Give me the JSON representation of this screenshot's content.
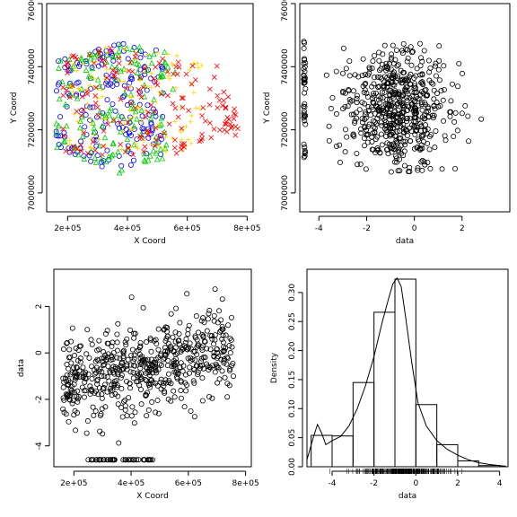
{
  "chart_data": [
    {
      "type": "scatter",
      "panel": "top-left",
      "xlabel": "X Coord",
      "ylabel": "Y Coord",
      "xlim": [
        130000,
        820000
      ],
      "ylim": [
        6940000,
        7600000
      ],
      "xticks": [
        200000,
        400000,
        600000,
        800000
      ],
      "xticklabels": [
        "2e+05",
        "4e+05",
        "6e+05",
        "8e+05"
      ],
      "yticks": [
        7000000,
        7200000,
        7400000,
        7600000
      ],
      "yticklabels": [
        "7000000",
        "7200000",
        "7400000",
        "7600000"
      ],
      "series": [
        {
          "marker": "circle",
          "color": "#0000ff",
          "approx_region": {
            "x": [
              160000,
              520000
            ],
            "y": [
              7080000,
              7480000
            ]
          },
          "count": 180
        },
        {
          "marker": "triangle",
          "color": "#00cd00",
          "approx_region": {
            "x": [
              160000,
              560000
            ],
            "y": [
              7060000,
              7480000
            ]
          },
          "count": 150
        },
        {
          "marker": "plus",
          "color": "#ffd700",
          "approx_region": {
            "x": [
              200000,
              650000
            ],
            "y": [
              7130000,
              7480000
            ]
          },
          "count": 120
        },
        {
          "marker": "cross",
          "color": "#ff0000",
          "approx_region": {
            "x": [
              180000,
              780000
            ],
            "y": [
              7120000,
              7460000
            ]
          },
          "count": 170
        }
      ]
    },
    {
      "type": "scatter",
      "panel": "top-right",
      "xlabel": "data",
      "ylabel": "Y Coord",
      "xlim": [
        -4.8,
        4.0
      ],
      "ylim": [
        6940000,
        7600000
      ],
      "xticks": [
        -4,
        -2,
        0,
        2
      ],
      "xticklabels": [
        "-4",
        "-2",
        "0",
        "2"
      ],
      "yticks": [
        7000000,
        7200000,
        7400000,
        7600000
      ],
      "yticklabels": [
        "7000000",
        "7200000",
        "7400000",
        "7600000"
      ],
      "note": "Open circles; column of points at data ≈ -4.6 spanning Y 7080000–7480000; dense cloud around data -1 to 0, Y 7100000–7450000",
      "point_count": 620
    },
    {
      "type": "scatter",
      "panel": "bottom-left",
      "xlabel": "X Coord",
      "ylabel": "data",
      "xlim": [
        130000,
        820000
      ],
      "ylim": [
        -4.9,
        3.6
      ],
      "xticks": [
        200000,
        400000,
        600000,
        800000
      ],
      "xticklabels": [
        "2e+05",
        "4e+05",
        "6e+05",
        "8e+05"
      ],
      "yticks": [
        -4,
        -2,
        0,
        2
      ],
      "yticklabels": [
        "-4",
        "-2",
        "0",
        "2"
      ],
      "note": "Open circles; row of points at data ≈ -4.6 for X 250000–480000; cloud rising from about -1 at 2e+05 to about 0 at 7e+05",
      "point_count": 620
    },
    {
      "type": "bar",
      "panel": "bottom-right",
      "subtype": "histogram-with-density",
      "xlabel": "data",
      "ylabel": "Density",
      "xlim": [
        -5.2,
        4.4
      ],
      "ylim": [
        0,
        0.34
      ],
      "xticks": [
        -4,
        -2,
        0,
        2,
        4
      ],
      "xticklabels": [
        "-4",
        "-2",
        "0",
        "2",
        "4"
      ],
      "yticks": [
        0.0,
        0.05,
        0.1,
        0.15,
        0.2,
        0.25,
        0.3
      ],
      "yticklabels": [
        "0.00",
        "0.05",
        "0.10",
        "0.15",
        "0.20",
        "0.25",
        "0.30"
      ],
      "bins": [
        -5,
        -4,
        -3,
        -2,
        -1,
        0,
        1,
        2,
        3,
        4
      ],
      "densities": [
        0.054,
        0.053,
        0.145,
        0.266,
        0.323,
        0.107,
        0.038,
        0.01,
        0.002
      ],
      "density_curve": {
        "x": [
          -5.2,
          -4.9,
          -4.7,
          -4.5,
          -4.3,
          -4.0,
          -3.6,
          -3.2,
          -2.8,
          -2.4,
          -2.0,
          -1.6,
          -1.3,
          -1.1,
          -0.9,
          -0.7,
          -0.5,
          -0.2,
          0.1,
          0.5,
          1.0,
          1.5,
          2.0,
          2.5,
          3.0,
          3.5,
          4.0,
          4.3
        ],
        "y": [
          0.012,
          0.05,
          0.073,
          0.058,
          0.038,
          0.045,
          0.052,
          0.07,
          0.1,
          0.14,
          0.19,
          0.25,
          0.29,
          0.315,
          0.325,
          0.31,
          0.26,
          0.18,
          0.11,
          0.07,
          0.045,
          0.03,
          0.02,
          0.012,
          0.007,
          0.004,
          0.002,
          0.001
        ]
      },
      "rug": true
    }
  ]
}
